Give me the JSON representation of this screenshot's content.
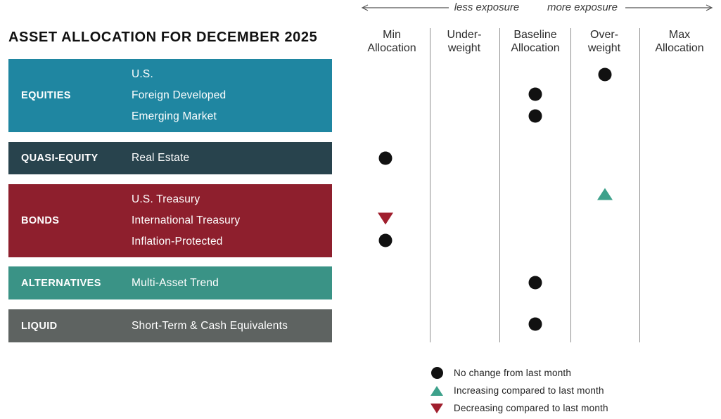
{
  "title": "ASSET ALLOCATION FOR DECEMBER 2025",
  "exposure": {
    "less": "less exposure",
    "more": "more exposure"
  },
  "columns": [
    {
      "label": "Min\nAllocation"
    },
    {
      "label": "Under-\nweight"
    },
    {
      "label": "Baseline\nAllocation"
    },
    {
      "label": "Over-\nweight"
    },
    {
      "label": "Max\nAllocation"
    }
  ],
  "categories": [
    {
      "name": "EQUITIES",
      "color": "#1f86a1",
      "assets": [
        "U.S.",
        "Foreign Developed",
        "Emerging Market"
      ]
    },
    {
      "name": "QUASI-EQUITY",
      "color": "#28434d",
      "assets": [
        "Real Estate"
      ]
    },
    {
      "name": "BONDS",
      "color": "#8e1f2d",
      "assets": [
        "U.S. Treasury",
        "International Treasury",
        "Inflation-Protected"
      ]
    },
    {
      "name": "ALTERNATIVES",
      "color": "#3a9386",
      "assets": [
        "Multi-Asset Trend"
      ]
    },
    {
      "name": "LIQUID",
      "color": "#5e6361",
      "assets": [
        "Short-Term & Cash Equivalents"
      ]
    }
  ],
  "chart_data": {
    "type": "scatter",
    "title": "ASSET ALLOCATION FOR DECEMBER 2025",
    "columns": [
      "Min Allocation",
      "Under-weight",
      "Baseline Allocation",
      "Over-weight",
      "Max Allocation"
    ],
    "rows": [
      {
        "category": "EQUITIES",
        "asset": "U.S.",
        "position": "Over-weight",
        "change": "none"
      },
      {
        "category": "EQUITIES",
        "asset": "Foreign Developed",
        "position": "Baseline Allocation",
        "change": "none"
      },
      {
        "category": "EQUITIES",
        "asset": "Emerging Market",
        "position": "Baseline Allocation",
        "change": "none"
      },
      {
        "category": "QUASI-EQUITY",
        "asset": "Real Estate",
        "position": "Min Allocation",
        "change": "none"
      },
      {
        "category": "BONDS",
        "asset": "U.S. Treasury",
        "position": "Over-weight",
        "change": "increase"
      },
      {
        "category": "BONDS",
        "asset": "International Treasury",
        "position": "Min Allocation",
        "change": "decrease"
      },
      {
        "category": "BONDS",
        "asset": "Inflation-Protected",
        "position": "Min Allocation",
        "change": "none"
      },
      {
        "category": "ALTERNATIVES",
        "asset": "Multi-Asset Trend",
        "position": "Baseline Allocation",
        "change": "none"
      },
      {
        "category": "LIQUID",
        "asset": "Short-Term & Cash Equivalents",
        "position": "Baseline Allocation",
        "change": "none"
      }
    ]
  },
  "marker_colors": {
    "none": "#111111",
    "increase": "#3da18b",
    "decrease": "#a01f2e"
  },
  "legend": [
    {
      "marker": "dot",
      "color": "#111111",
      "label": "No change from last month"
    },
    {
      "marker": "triangle-up",
      "color": "#3da18b",
      "label": "Increasing compared to last month"
    },
    {
      "marker": "triangle-down",
      "color": "#a01f2e",
      "label": "Decreasing compared to last month"
    }
  ]
}
